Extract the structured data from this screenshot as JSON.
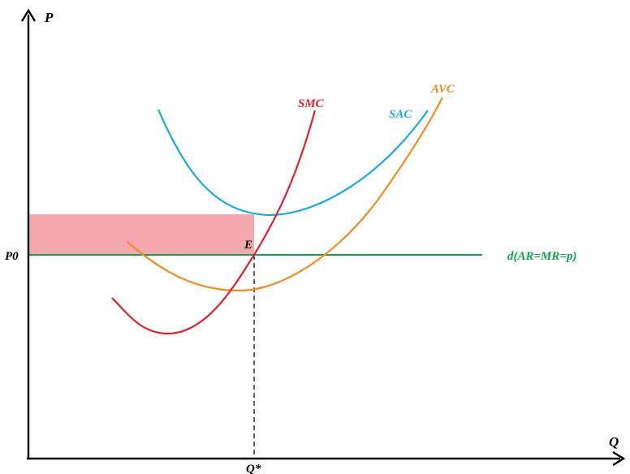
{
  "axes": {
    "y_label": "P",
    "x_label": "Q"
  },
  "labels": {
    "price_level": "P0",
    "equilibrium": "E",
    "quantity": "Q*",
    "demand_line": "d(AR=MR=p)"
  },
  "curves": {
    "smc": {
      "name": "SMC",
      "color": "#e0202a"
    },
    "sac": {
      "name": "SAC",
      "color": "#1ea8e0"
    },
    "avc": {
      "name": "AVC",
      "color": "#f08a24"
    },
    "demand": {
      "color": "#13a04a"
    }
  },
  "colors": {
    "axis": "#000000",
    "profit_area": "#f4a8ae",
    "guide": "#000000"
  }
}
